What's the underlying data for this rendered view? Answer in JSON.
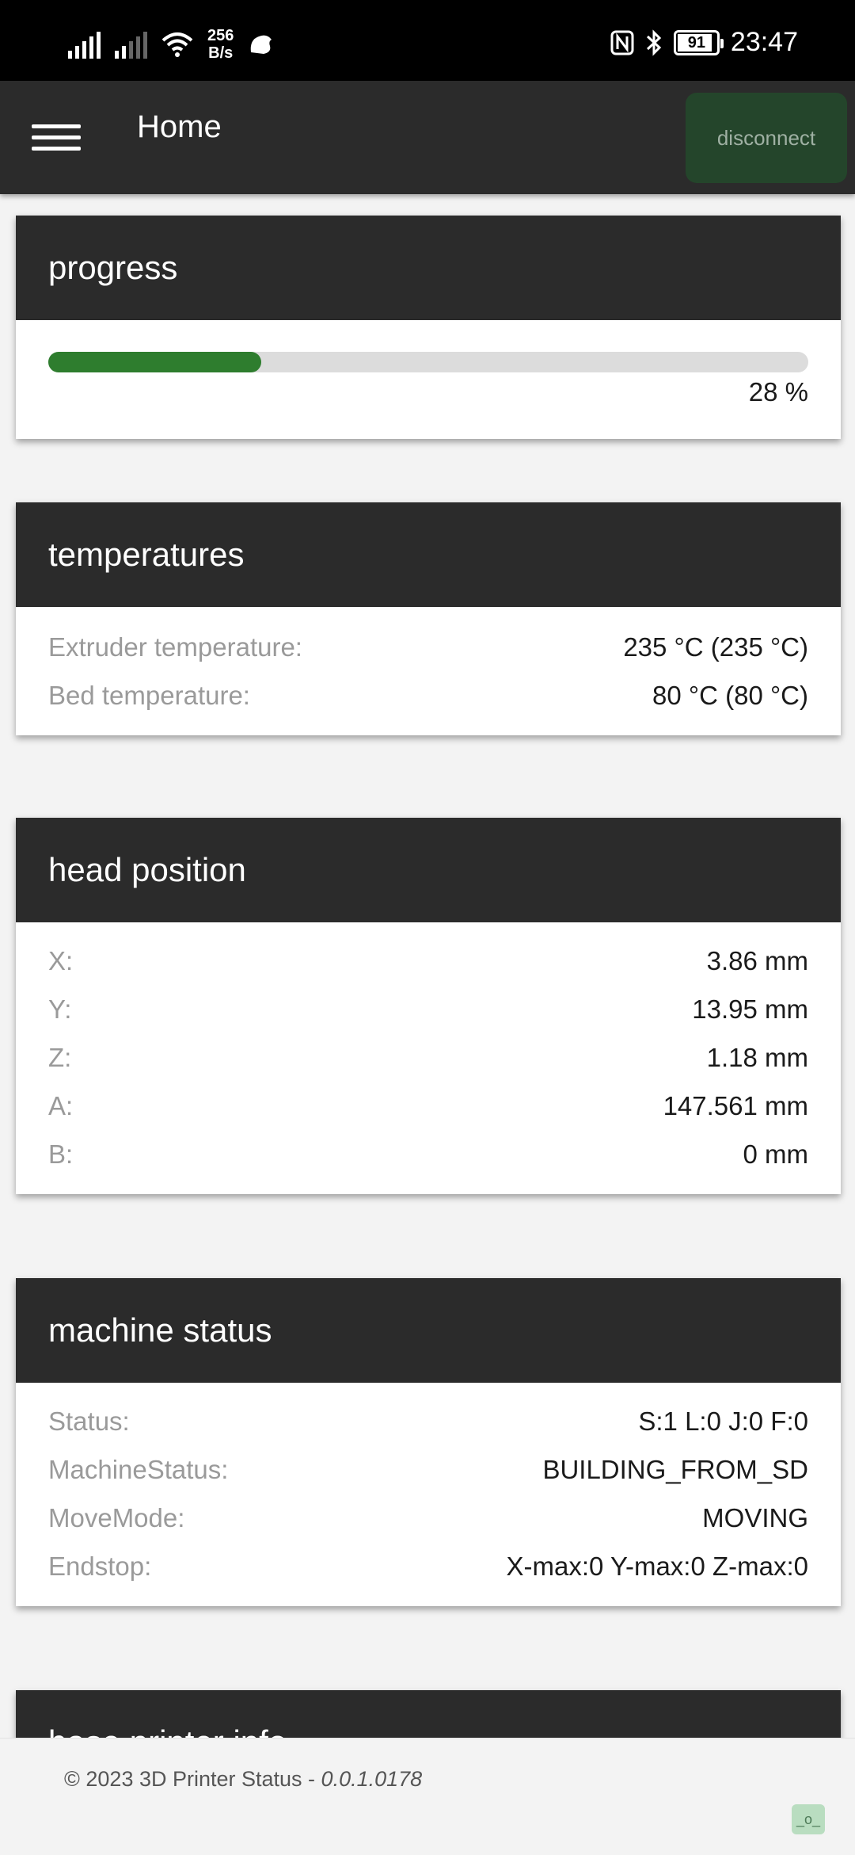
{
  "status_bar": {
    "net_speed_value": "256",
    "net_speed_unit": "B/s",
    "battery": "91",
    "time": "23:47"
  },
  "app_bar": {
    "title": "Home",
    "disconnect_label": "disconnect"
  },
  "progress": {
    "title": "progress",
    "percent": 28,
    "percent_label": "28 %"
  },
  "temperatures": {
    "title": "temperatures",
    "rows": [
      {
        "label": "Extruder temperature:",
        "value": "235 °C (235 °C)"
      },
      {
        "label": "Bed temperature:",
        "value": "80 °C (80 °C)"
      }
    ]
  },
  "head_position": {
    "title": "head position",
    "rows": [
      {
        "label": "X:",
        "value": "3.86 mm"
      },
      {
        "label": "Y:",
        "value": "13.95 mm"
      },
      {
        "label": "Z:",
        "value": "1.18 mm"
      },
      {
        "label": "A:",
        "value": "147.561 mm"
      },
      {
        "label": "B:",
        "value": "0 mm"
      }
    ]
  },
  "machine_status": {
    "title": "machine status",
    "rows": [
      {
        "label": "Status:",
        "value": "S:1 L:0 J:0 F:0"
      },
      {
        "label": "MachineStatus:",
        "value": "BUILDING_FROM_SD"
      },
      {
        "label": "MoveMode:",
        "value": "MOVING"
      },
      {
        "label": "Endstop:",
        "value": "X-max:0 Y-max:0 Z-max:0"
      }
    ]
  },
  "base_printer_info": {
    "title": "base printer info"
  },
  "footer": {
    "copyright": "© 2023 3D Printer Status - ",
    "version": "0.0.1.0178",
    "badge": "_o_"
  },
  "colors": {
    "app_bar": "#2b2b2b",
    "progress_fill": "#2e7d2e",
    "disconnect_bg": "#24452b"
  }
}
